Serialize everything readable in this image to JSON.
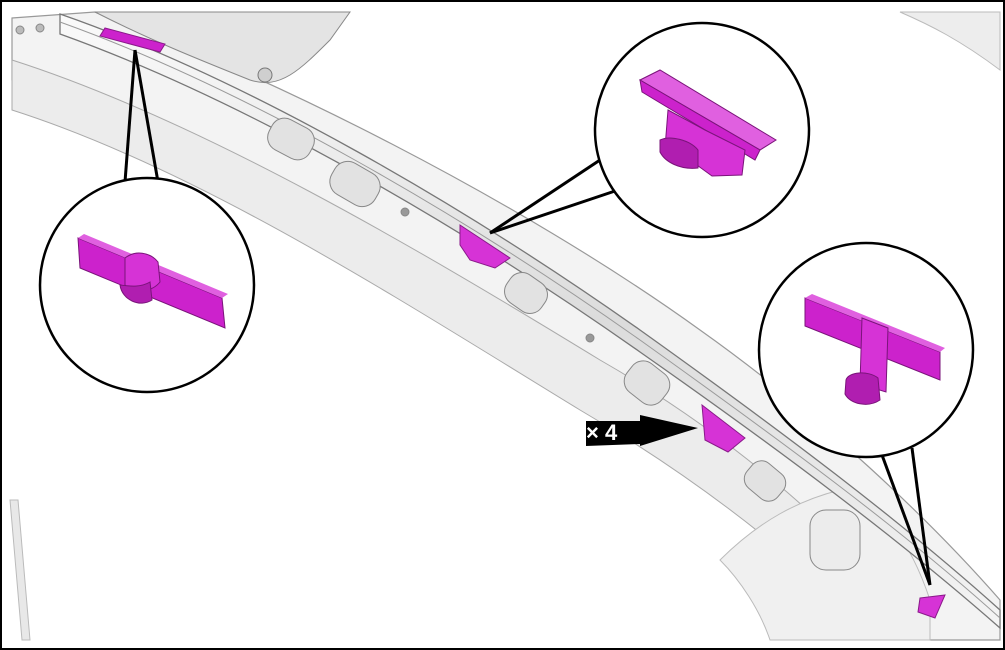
{
  "diagram": {
    "quantity_callout": "× 4",
    "colors": {
      "highlight": "#cc22cc",
      "highlight_dark": "#8a1a8a",
      "highlight_light": "#e060e0",
      "panel": "#f2f2f2",
      "panel_shade": "#d6d6d6",
      "outline": "#000000"
    },
    "detail_views": [
      {
        "name": "detail-view-left-clip",
        "icon": "clip-long-bar-icon"
      },
      {
        "name": "detail-view-top-clip",
        "icon": "clip-wedge-icon"
      },
      {
        "name": "detail-view-right-clip",
        "icon": "clip-t-bar-icon"
      }
    ]
  }
}
